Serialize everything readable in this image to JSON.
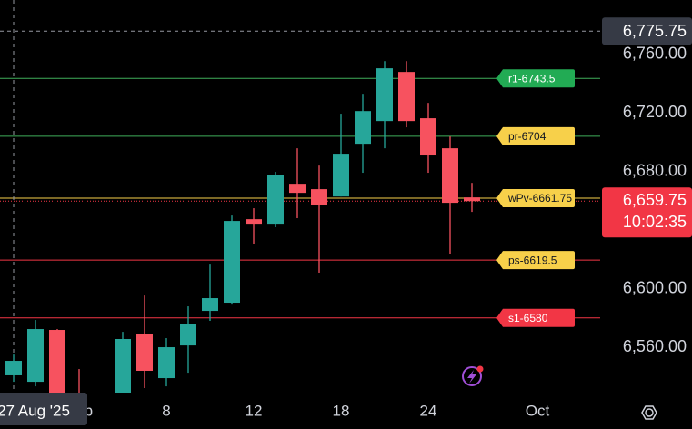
{
  "chart_data": {
    "type": "candlestick",
    "categories": [
      "27 Aug '25",
      null,
      null,
      "Sep",
      null,
      null,
      null,
      "8",
      null,
      null,
      null,
      "12",
      null,
      null,
      null,
      "18",
      null,
      null,
      null,
      "24",
      null,
      null,
      null,
      null,
      "Oct"
    ],
    "open": [
      6540.8,
      6536.4,
      6571.8,
      6525,
      6505,
      6525,
      6568.7,
      6538.9,
      6561.2,
      6584.8,
      6590.4,
      6647.4,
      6643.7,
      6671.6,
      6667.9,
      6662.9,
      6698.9,
      6714.4,
      6747.9,
      6716.3,
      6695.8,
      6662.3,
      null,
      null,
      null
    ],
    "high": [
      6555,
      6578.6,
      6572.4,
      6545.1,
      6520,
      6570.5,
      6595.3,
      6566.2,
      6587.9,
      6616.4,
      6649.9,
      6654.9,
      6679.7,
      6695.8,
      6684,
      6719.4,
      6733,
      6755.3,
      6755.3,
      6726.8,
      6703.9,
      6672.2,
      null,
      null,
      null
    ],
    "low": [
      6536.4,
      6533.3,
      6510,
      6500,
      6490,
      6515,
      6532.1,
      6533.3,
      6542.6,
      6578,
      6589.1,
      6630.7,
      6641.9,
      6648.1,
      6610.9,
      6662.9,
      6679.1,
      6695.8,
      6710.1,
      6679.1,
      6623.3,
      6652.4,
      null,
      null,
      null
    ],
    "close": [
      6550.7,
      6572.4,
      6520,
      6505,
      6515,
      6565.6,
      6543.9,
      6560,
      6576.1,
      6593.5,
      6646.2,
      6643.7,
      6677.8,
      6665.4,
      6657.4,
      6692.1,
      6721.2,
      6750.4,
      6714.4,
      6690.9,
      6658.6,
      6659.75,
      null,
      null,
      null
    ],
    "up_color": "#26a69a",
    "down_color": "#f7525f",
    "ylim": [
      6529,
      6797
    ],
    "yticks": [
      {
        "value": 6560,
        "label": "6,560.00"
      },
      {
        "value": 6600,
        "label": "6,600.00"
      },
      {
        "value": 6680,
        "label": "6,680.00"
      },
      {
        "value": 6720,
        "label": "6,720.00"
      },
      {
        "value": 6760,
        "label": "6,760.00"
      }
    ],
    "levels": [
      {
        "name": "r1-6743.5",
        "value": 6743.5,
        "color": "#3fae5a",
        "label_color": "#22ab54",
        "text_color": "#ffffff"
      },
      {
        "name": "pr-6704",
        "value": 6704,
        "color": "#3fae5a",
        "label_color": "#f7d04a",
        "text_color": "#131722"
      },
      {
        "name": "wPv-6661.75",
        "value": 6661.75,
        "color": "#f7d04a",
        "label_color": "#f7d04a",
        "text_color": "#131722"
      },
      {
        "name": "ps-6619.5",
        "value": 6619.5,
        "color": "#f23645",
        "label_color": "#f7d04a",
        "text_color": "#131722"
      },
      {
        "name": "s1-6580",
        "value": 6580,
        "color": "#f23645",
        "label_color": "#f23645",
        "text_color": "#ffffff"
      }
    ],
    "crosshair": {
      "value": 6775.75,
      "label": "6,775.75"
    },
    "last_price": {
      "value": 6659.75,
      "label": "6,659.75",
      "time": "10:02:35",
      "color": "#f23645"
    }
  }
}
